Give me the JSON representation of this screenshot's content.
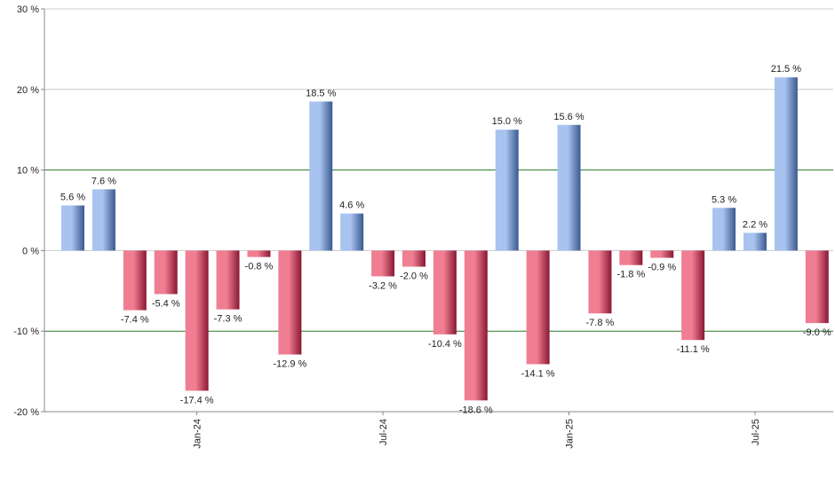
{
  "chart_data": {
    "type": "bar",
    "title": "",
    "xlabel": "",
    "ylabel": "",
    "ylim": [
      -20,
      30
    ],
    "y_ticks": [
      -20,
      -10,
      0,
      10,
      20,
      30
    ],
    "y_tick_suffix": " %",
    "x_tick_labels": [
      {
        "label": "Jan-24",
        "index": 4
      },
      {
        "label": "Jul-24",
        "index": 10
      },
      {
        "label": "Jan-25",
        "index": 16
      },
      {
        "label": "Jul-25",
        "index": 22
      }
    ],
    "highlight_lines": [
      10,
      -10
    ],
    "values": [
      5.6,
      7.6,
      -7.4,
      -5.4,
      -17.4,
      -7.3,
      -0.8,
      -12.9,
      18.5,
      4.6,
      -3.2,
      -2.0,
      -10.4,
      -18.6,
      15.0,
      -14.1,
      15.6,
      -7.8,
      -1.8,
      -0.9,
      -11.1,
      5.3,
      2.2,
      21.5,
      -9.0
    ],
    "data_labels": [
      "5.6 %",
      "7.6 %",
      "-7.4 %",
      "-5.4 %",
      "-17.4 %",
      "-7.3 %",
      "-0.8 %",
      "-12.9 %",
      "18.5 %",
      "4.6 %",
      "-3.2 %",
      "-2.0 %",
      "-10.4 %",
      "-18.6 %",
      "15.0 %",
      "-14.1 %",
      "15.6 %",
      "-7.8 %",
      "-1.8 %",
      "-0.9 %",
      "-11.1 %",
      "5.3 %",
      "2.2 %",
      "21.5 %",
      "-9.0 %"
    ],
    "grid": true,
    "legend": "none",
    "colors": {
      "positive_light": "#a9c3f0",
      "positive_dark": "#3a5990",
      "negative_light": "#f07e92",
      "negative_dark": "#8a1733",
      "grid": "#cccccc",
      "highlight_line": "#2a7a2a",
      "axis": "#888888"
    }
  }
}
